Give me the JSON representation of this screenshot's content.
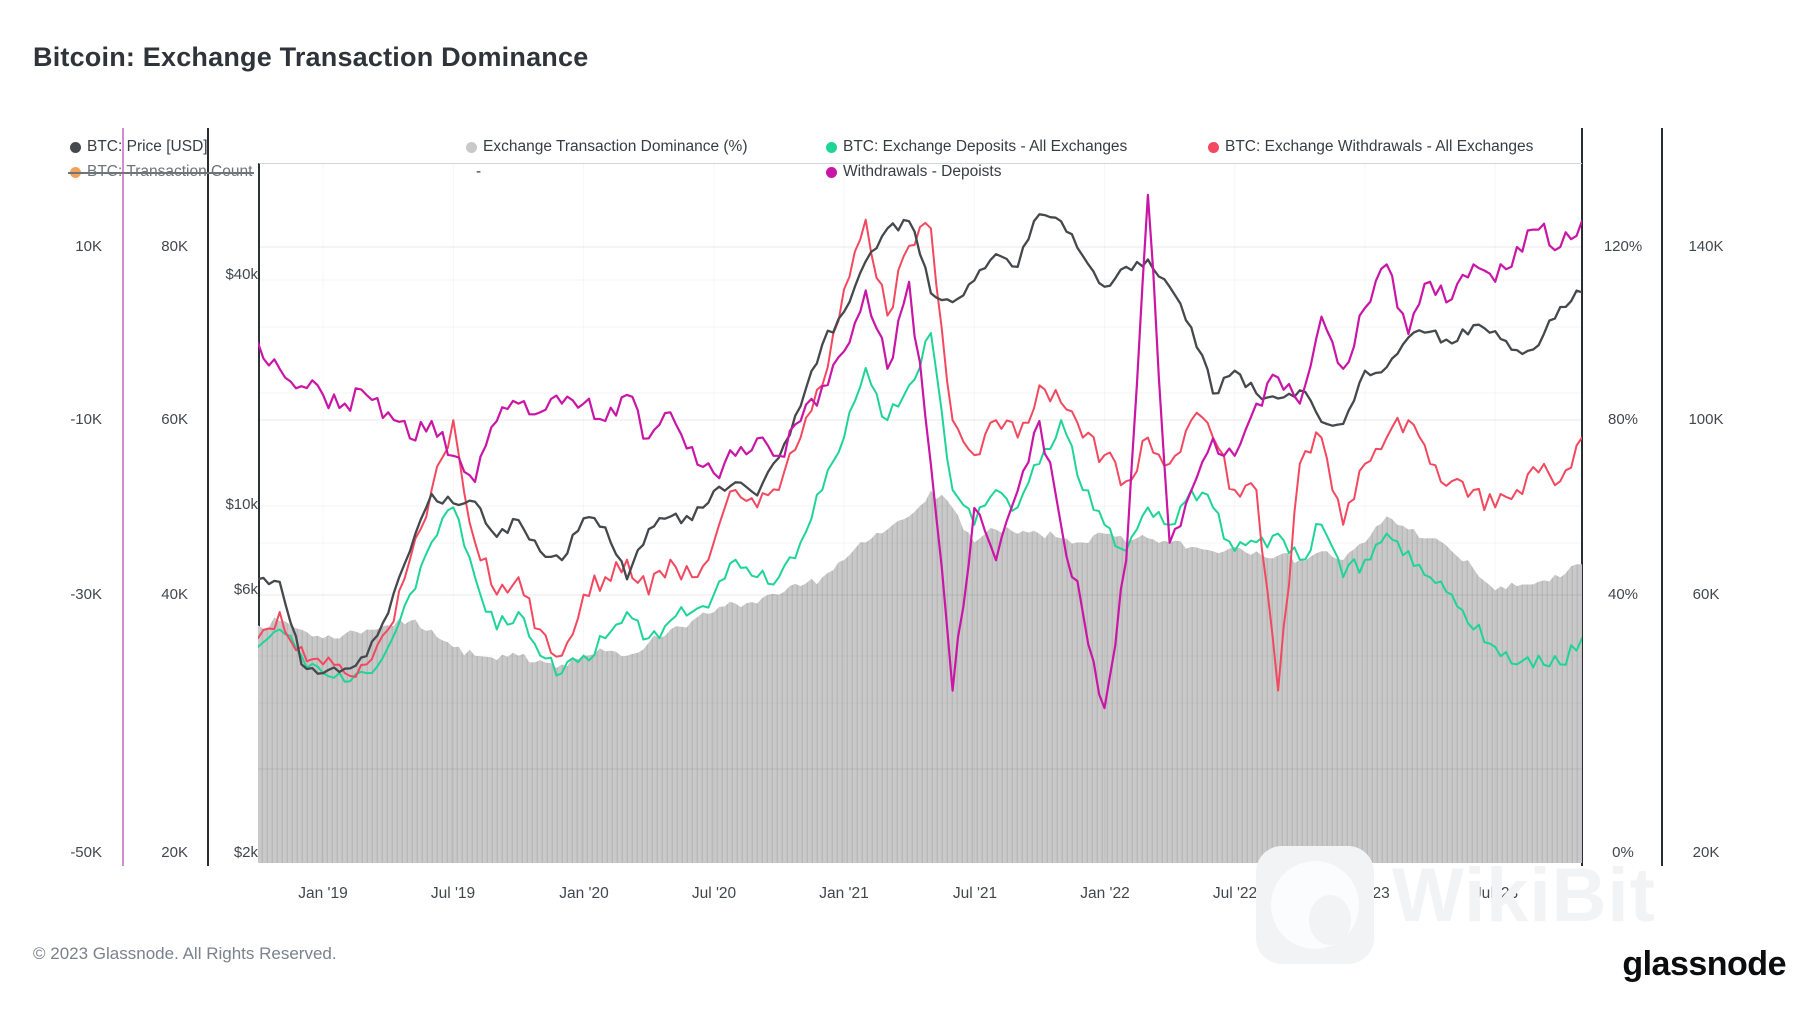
{
  "title": "Bitcoin: Exchange Transaction Dominance",
  "legend": {
    "row1": [
      {
        "label": "BTC: Price [USD]",
        "color": "#45484d",
        "disabled": false
      },
      {
        "label": "Exchange Transaction Dominance (%)",
        "color": "#c9c9c9",
        "disabled": false
      },
      {
        "label": "BTC: Exchange Deposits - All Exchanges",
        "color": "#1fd596",
        "disabled": false
      },
      {
        "label": "BTC: Exchange Withdrawals - All Exchanges",
        "color": "#f3485f",
        "disabled": false
      }
    ],
    "row2": [
      {
        "label": "BTC: Transaction Count",
        "color": "#f2a259",
        "disabled": true
      },
      {
        "label": "-",
        "color": null,
        "disabled": false
      },
      {
        "label": "Withdrawals - Depoists",
        "color": "#c916a6",
        "disabled": false
      }
    ]
  },
  "axes": {
    "diff": {
      "ticks": [
        "10K",
        "-10K",
        "-30K",
        "-50K"
      ]
    },
    "count_left": {
      "ticks": [
        "80K",
        "60K",
        "40K",
        "20K"
      ]
    },
    "price": {
      "ticks": [
        "$40k",
        "$10k",
        "$6k",
        "$2k"
      ]
    },
    "percent": {
      "ticks": [
        "120%",
        "80%",
        "40%",
        "0%"
      ]
    },
    "count_right": {
      "ticks": [
        "140K",
        "100K",
        "60K",
        "20K"
      ]
    }
  },
  "x_axis": {
    "labels": [
      "Jan '19",
      "Jul '19",
      "Jan '20",
      "Jul '20",
      "Jan '21",
      "Jul '21",
      "Jan '22",
      "Jul '22",
      "Jan '23",
      "Jul '23"
    ]
  },
  "footer": {
    "copyright": "© 2023 Glassnode. All Rights Reserved.",
    "brand": "glassnode"
  },
  "watermark": {
    "text": "WikiBit"
  },
  "chart_data": {
    "type": "line",
    "title": "Bitcoin: Exchange Transaction Dominance",
    "x_range": [
      "2018-10",
      "2023-11"
    ],
    "grid": true,
    "legend_position": "top",
    "months": [
      "2018-10",
      "2018-11",
      "2018-12",
      "2019-01",
      "2019-02",
      "2019-03",
      "2019-04",
      "2019-05",
      "2019-06",
      "2019-07",
      "2019-08",
      "2019-09",
      "2019-10",
      "2019-11",
      "2019-12",
      "2020-01",
      "2020-02",
      "2020-03",
      "2020-04",
      "2020-05",
      "2020-06",
      "2020-07",
      "2020-08",
      "2020-09",
      "2020-10",
      "2020-11",
      "2020-12",
      "2021-01",
      "2021-02",
      "2021-03",
      "2021-04",
      "2021-05",
      "2021-06",
      "2021-07",
      "2021-08",
      "2021-09",
      "2021-10",
      "2021-11",
      "2021-12",
      "2022-01",
      "2022-02",
      "2022-03",
      "2022-04",
      "2022-05",
      "2022-06",
      "2022-07",
      "2022-08",
      "2022-09",
      "2022-10",
      "2022-11",
      "2022-12",
      "2023-01",
      "2023-02",
      "2023-03",
      "2023-04",
      "2023-05",
      "2023-06",
      "2023-07",
      "2023-08",
      "2023-09",
      "2023-10",
      "2023-11"
    ],
    "axes": {
      "price_log": {
        "scale": "log",
        "unit": "USD",
        "tick_values": [
          40000,
          10000,
          6000,
          2000
        ]
      },
      "percent": {
        "scale": "linear",
        "unit": "%",
        "tick_values": [
          120,
          80,
          40,
          0
        ]
      },
      "count_left": {
        "scale": "linear",
        "unit": "K",
        "tick_values": [
          80,
          60,
          40,
          20
        ]
      },
      "diff": {
        "scale": "linear",
        "unit": "K",
        "tick_values": [
          10,
          -10,
          -30,
          -50
        ]
      },
      "count_right": {
        "scale": "linear",
        "unit": "K",
        "tick_values": [
          140,
          100,
          60,
          20
        ]
      }
    },
    "series": [
      {
        "id": "dominance",
        "name": "Exchange Transaction Dominance (%)",
        "type": "area",
        "axis": "percent",
        "color": "#c9c9c9",
        "stripe": "#b9b9b9",
        "values": [
          33,
          34,
          32,
          30,
          31,
          32,
          33,
          34,
          32,
          28,
          26,
          25,
          26,
          25,
          24,
          26,
          27,
          26,
          29,
          32,
          34,
          36,
          38,
          38,
          40,
          42,
          44,
          48,
          52,
          55,
          58,
          64,
          60,
          52,
          55,
          54,
          54,
          53,
          52,
          54,
          52,
          53,
          52,
          51,
          50,
          51,
          50,
          49,
          48,
          50,
          48,
          52,
          58,
          55,
          53,
          50,
          46,
          41,
          42,
          43,
          44,
          47
        ]
      },
      {
        "id": "deposits",
        "name": "BTC: Exchange Deposits - All Exchanges",
        "type": "line",
        "axis": "count_left",
        "color": "#1fd596",
        "values": [
          34,
          36,
          33,
          31,
          30,
          31,
          34,
          40,
          46,
          50,
          42,
          36,
          38,
          33,
          31,
          33,
          35,
          38,
          35,
          37,
          38,
          40,
          44,
          42,
          42,
          46,
          52,
          58,
          66,
          60,
          64,
          70,
          52,
          48,
          52,
          50,
          55,
          60,
          52,
          48,
          45,
          50,
          48,
          52,
          50,
          45,
          46,
          47,
          44,
          48,
          42,
          44,
          47,
          45,
          42,
          40,
          36,
          34,
          32,
          33,
          32,
          35
        ]
      },
      {
        "id": "withdrawals",
        "name": "BTC: Exchange Withdrawals - All Exchanges",
        "type": "line",
        "axis": "count_left",
        "color": "#f3485f",
        "values": [
          35,
          38,
          34,
          32,
          31,
          32,
          36,
          44,
          52,
          60,
          46,
          40,
          42,
          36,
          33,
          40,
          42,
          44,
          40,
          44,
          42,
          46,
          52,
          50,
          52,
          58,
          64,
          75,
          83,
          72,
          80,
          82,
          60,
          56,
          60,
          58,
          64,
          62,
          58,
          56,
          53,
          58,
          55,
          60,
          58,
          52,
          52,
          29,
          55,
          58,
          48,
          55,
          58,
          60,
          55,
          53,
          52,
          50,
          52,
          54,
          53,
          58
        ]
      },
      {
        "id": "price",
        "name": "BTC: Price [USD]",
        "type": "line",
        "axis": "price_log",
        "color": "#45484d",
        "values": [
          6400,
          6300,
          3800,
          3600,
          3700,
          4000,
          5200,
          7600,
          10800,
          10200,
          10300,
          8300,
          9200,
          7600,
          7200,
          9300,
          8800,
          6400,
          8700,
          9400,
          9200,
          11000,
          11600,
          10700,
          13500,
          18500,
          27000,
          33000,
          45000,
          55000,
          57500,
          37000,
          35000,
          40000,
          47000,
          43500,
          60000,
          57500,
          46500,
          38500,
          43500,
          45500,
          38500,
          30000,
          20000,
          23000,
          20000,
          19400,
          20400,
          16800,
          16600,
          23000,
          23500,
          28200,
          29200,
          27200,
          30400,
          29300,
          26100,
          26900,
          34000,
          37200
        ]
      },
      {
        "id": "wd_minus_dep",
        "name": "Withdrawals - Depoists",
        "type": "line",
        "axis": "diff",
        "color": "#c916a6",
        "values": [
          -1,
          -4,
          -6,
          -7,
          -8,
          -7,
          -9,
          -12,
          -10,
          -14,
          -17,
          -10,
          -8,
          -9,
          -8,
          -8,
          -10,
          -7,
          -12,
          -9,
          -13,
          -16,
          -14,
          -12,
          -14,
          -10,
          -6,
          -2,
          5,
          -4,
          6,
          -15,
          -41,
          -20,
          -26,
          -18,
          -10,
          -22,
          -32,
          -43,
          -26,
          16,
          -24,
          -18,
          -12,
          -14,
          -8,
          -5,
          -8,
          2,
          -4,
          3,
          8,
          0,
          6,
          4,
          8,
          6,
          10,
          12,
          10,
          13
        ]
      }
    ]
  }
}
